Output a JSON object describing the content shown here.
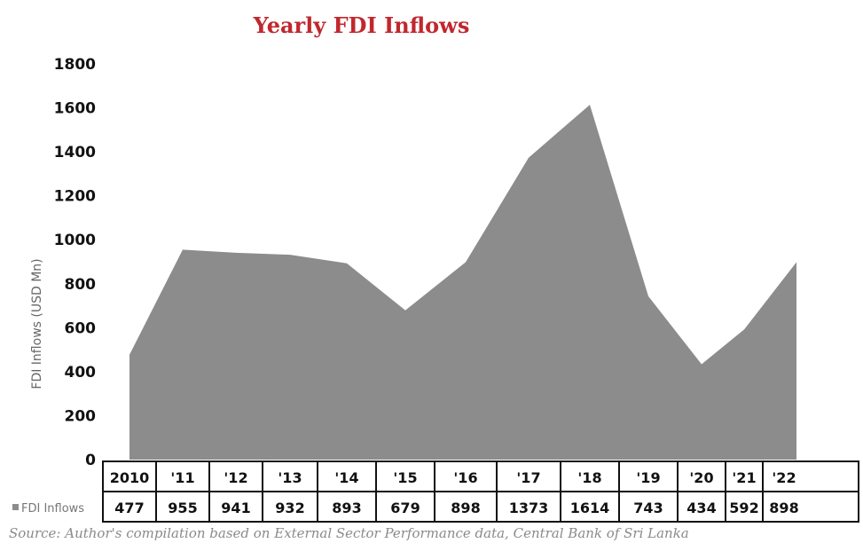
{
  "chart_data": {
    "type": "area",
    "title": "Yearly FDI Inflows",
    "ylabel": "FDI Inflows (USD Mn)",
    "ylim": [
      0,
      1800
    ],
    "yticks": [
      0,
      200,
      400,
      600,
      800,
      1000,
      1200,
      1400,
      1600,
      1800
    ],
    "categories": [
      "2010",
      "'11",
      "'12",
      "'13",
      "'14",
      "'15",
      "'16",
      "'17",
      "'18",
      "'19",
      "'20",
      "'21",
      "'22"
    ],
    "series": [
      {
        "name": "FDI Inflows",
        "values": [
          477,
          955,
          941,
          932,
          893,
          679,
          898,
          1373,
          1614,
          743,
          434,
          592,
          898
        ]
      }
    ],
    "colors": {
      "area": "#8c8c8d",
      "title": "#c0282e"
    },
    "legend": "table-left",
    "source": "Source: Author's compilation based on External Sector Performance data, Central Bank of Sri Lanka"
  }
}
